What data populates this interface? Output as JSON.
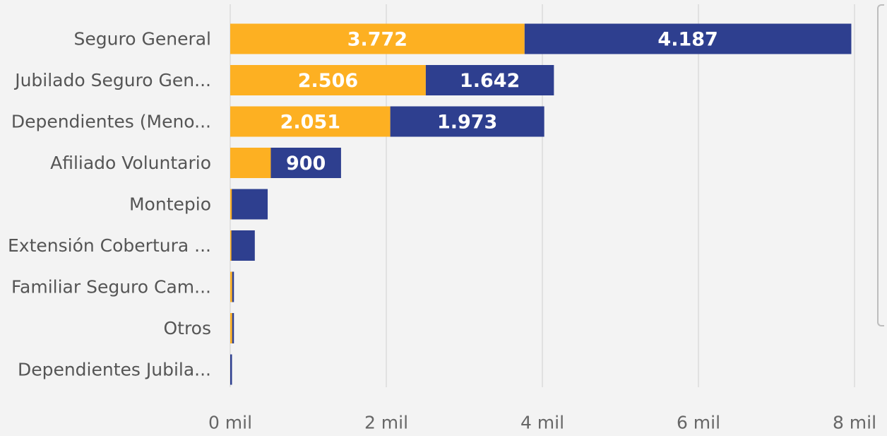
{
  "chart_data": {
    "type": "bar",
    "orientation": "horizontal",
    "stacked": true,
    "categories": [
      "Seguro General",
      "Jubilado Seguro Gen...",
      "Dependientes (Meno...",
      "Afiliado Voluntario",
      "Montepio",
      "Extensión Cobertura ...",
      "Familiar Seguro Cam...",
      "Otros",
      "Dependientes Jubila..."
    ],
    "series": [
      {
        "color": "#FDB022",
        "values": [
          3772,
          2506,
          2051,
          520,
          20,
          15,
          25,
          25,
          0
        ],
        "labels": [
          "3.772",
          "2.506",
          "2.051",
          "",
          "",
          "",
          "",
          "",
          ""
        ]
      },
      {
        "color": "#2E3F8F",
        "values": [
          4187,
          1642,
          1973,
          900,
          460,
          300,
          5,
          5,
          8
        ],
        "labels": [
          "4.187",
          "1.642",
          "1.973",
          "900",
          "",
          "",
          "",
          "",
          ""
        ]
      }
    ],
    "xticks": [
      {
        "value": 0,
        "label": "0 mil"
      },
      {
        "value": 2000,
        "label": "2 mil"
      },
      {
        "value": 4000,
        "label": "4 mil"
      },
      {
        "value": 6000,
        "label": "6 mil"
      },
      {
        "value": 8000,
        "label": "8 mil"
      }
    ],
    "xlim": [
      0,
      8000
    ],
    "grid": true,
    "colors": {
      "gridline": "#e1e1e1",
      "category_text": "#555555",
      "tick_text": "#666666",
      "data_label": "#ffffff"
    }
  }
}
